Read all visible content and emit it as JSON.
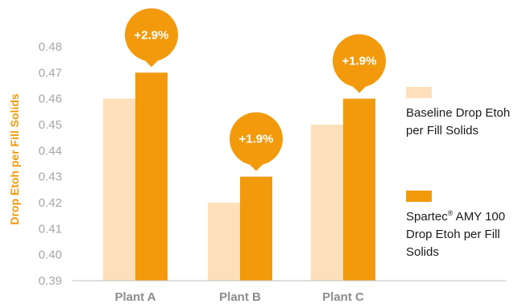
{
  "chart_data": {
    "type": "bar",
    "ylabel": "Drop Etoh per Fill Solids",
    "categories": [
      "Plant A",
      "Plant B",
      "Plant C"
    ],
    "ylim": [
      0.39,
      0.48
    ],
    "yticks": [
      "0.39",
      "0.40",
      "0.41",
      "0.42",
      "0.43",
      "0.44",
      "0.45",
      "0.46",
      "0.47",
      "0.48"
    ],
    "grid": false,
    "legend_position": "right",
    "series": [
      {
        "name": "Baseline Drop Etoh per Fill Solids",
        "color": "#fde0bb",
        "values": [
          0.46,
          0.42,
          0.45
        ]
      },
      {
        "name": "Spartec® AMY 100 Drop Etoh per Fill Solids",
        "color": "#f29a0c",
        "values": [
          0.47,
          0.43,
          0.46
        ]
      }
    ],
    "annotations": [
      "+2.9%",
      "+1.9%",
      "+1.9%"
    ]
  },
  "legend": {
    "baseline_label": "Baseline Drop Etoh per Fill Solids",
    "spartec_brand": "Spartec",
    "spartec_mark": "®",
    "spartec_rest": " AMY 100 Drop Etoh per Fill Solids"
  }
}
